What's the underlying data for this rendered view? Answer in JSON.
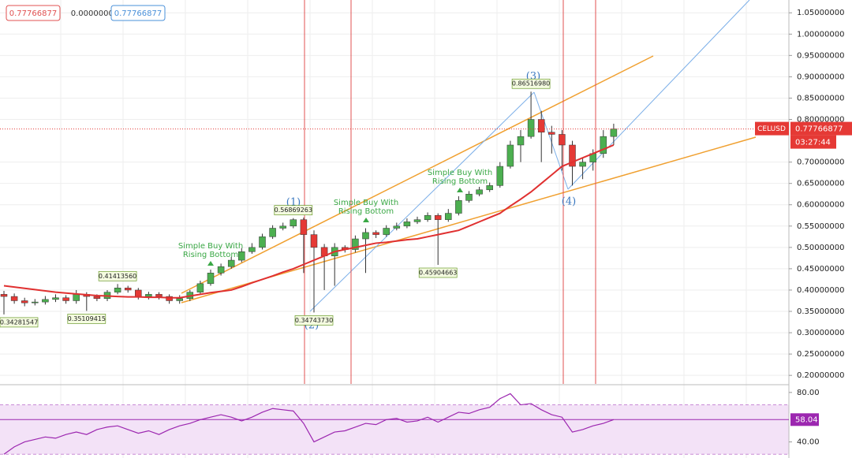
{
  "chart_data": [
    {
      "type": "candlestick",
      "categories": [
        null,
        null,
        null,
        null,
        null,
        null,
        null,
        null,
        null,
        null,
        null,
        null,
        null,
        null,
        null,
        null,
        null,
        null,
        null,
        null,
        null,
        null,
        null,
        null,
        null,
        null,
        null,
        null,
        null,
        null,
        null,
        null,
        null,
        null,
        null,
        null,
        null,
        null,
        null,
        null,
        null,
        null,
        null,
        null,
        null,
        null,
        null,
        null,
        null,
        null,
        null,
        null,
        null,
        null,
        null,
        null,
        null,
        null,
        null,
        null
      ],
      "open": [
        0.39,
        0.385,
        0.375,
        0.37,
        0.372,
        0.378,
        0.382,
        0.375,
        0.39,
        0.385,
        0.38,
        0.395,
        0.405,
        0.4,
        0.385,
        0.39,
        0.385,
        0.375,
        0.38,
        0.395,
        0.415,
        0.44,
        0.455,
        0.47,
        0.49,
        0.5,
        0.525,
        0.545,
        0.55,
        0.565,
        0.53,
        0.5,
        0.48,
        0.5,
        0.495,
        0.52,
        0.535,
        0.53,
        0.545,
        0.55,
        0.56,
        0.565,
        0.575,
        0.565,
        0.58,
        0.61,
        0.625,
        0.635,
        0.645,
        0.69,
        0.74,
        0.76,
        0.8,
        0.77,
        0.765,
        0.74,
        0.69,
        0.7,
        0.72,
        0.76
      ],
      "high": [
        0.398,
        0.392,
        0.382,
        0.379,
        0.386,
        0.39,
        0.388,
        0.4,
        0.395,
        0.39,
        0.4,
        0.4141356,
        0.41,
        0.405,
        0.396,
        0.395,
        0.39,
        0.388,
        0.4,
        0.422,
        0.448,
        0.462,
        0.478,
        0.498,
        0.51,
        0.532,
        0.552,
        0.558,
        0.56869263,
        0.57,
        0.54,
        0.508,
        0.51,
        0.505,
        0.528,
        0.545,
        0.54,
        0.552,
        0.558,
        0.568,
        0.572,
        0.582,
        0.58,
        0.59,
        0.62,
        0.632,
        0.642,
        0.652,
        0.7,
        0.75,
        0.775,
        0.8651698,
        0.82,
        0.785,
        0.775,
        0.75,
        0.71,
        0.73,
        0.775,
        0.79
      ],
      "low": [
        0.34281547,
        0.368,
        0.362,
        0.364,
        0.366,
        0.372,
        0.368,
        0.368,
        0.35109415,
        0.374,
        0.374,
        0.39,
        0.394,
        0.378,
        0.378,
        0.378,
        0.368,
        0.368,
        0.374,
        0.39,
        0.41,
        0.434,
        0.45,
        0.465,
        0.485,
        0.495,
        0.52,
        0.54,
        0.545,
        0.44,
        0.3474373,
        0.4,
        0.41,
        0.488,
        0.488,
        0.44,
        0.522,
        0.525,
        0.54,
        0.545,
        0.555,
        0.56,
        0.45904663,
        0.56,
        0.575,
        0.605,
        0.62,
        0.63,
        0.64,
        0.685,
        0.7,
        0.755,
        0.7,
        0.72,
        0.68,
        0.645,
        0.66,
        0.68,
        0.71,
        0.74
      ],
      "close": [
        0.385,
        0.375,
        0.37,
        0.372,
        0.378,
        0.382,
        0.375,
        0.39,
        0.385,
        0.38,
        0.395,
        0.405,
        0.4,
        0.385,
        0.39,
        0.385,
        0.375,
        0.38,
        0.395,
        0.415,
        0.44,
        0.455,
        0.47,
        0.49,
        0.5,
        0.525,
        0.545,
        0.55,
        0.565,
        0.53,
        0.5,
        0.48,
        0.5,
        0.495,
        0.52,
        0.535,
        0.53,
        0.545,
        0.55,
        0.56,
        0.565,
        0.575,
        0.565,
        0.58,
        0.61,
        0.625,
        0.635,
        0.645,
        0.69,
        0.74,
        0.76,
        0.8,
        0.77,
        0.765,
        0.74,
        0.69,
        0.7,
        0.72,
        0.76,
        0.77766877
      ],
      "up_color": "#4caf50",
      "down_color": "#e53935",
      "ma": {
        "color": "#e03030",
        "values": [
          0.41,
          0.407,
          0.404,
          0.401,
          0.398,
          0.395,
          0.393,
          0.391,
          0.389,
          0.387,
          0.386,
          0.385,
          0.384,
          0.384,
          0.383,
          0.383,
          0.382,
          0.382,
          0.386,
          0.39,
          0.394,
          0.397,
          0.4,
          0.408,
          0.417,
          0.425,
          0.433,
          0.442,
          0.45,
          0.46,
          0.47,
          0.48,
          0.49,
          0.495,
          0.5,
          0.505,
          0.51,
          0.512,
          0.515,
          0.518,
          0.52,
          0.525,
          0.53,
          0.535,
          0.54,
          0.55,
          0.56,
          0.57,
          0.58,
          0.597,
          0.613,
          0.63,
          0.65,
          0.67,
          0.69,
          0.7,
          0.71,
          0.72,
          0.73,
          0.74
        ]
      },
      "ylim": [
        0.18,
        1.08
      ],
      "yticks": [
        {
          "value": 0.2,
          "label": "0.20000000"
        },
        {
          "value": 0.25,
          "label": "0.25000000"
        },
        {
          "value": 0.3,
          "label": "0.30000000"
        },
        {
          "value": 0.35,
          "label": "0.35000000"
        },
        {
          "value": 0.4,
          "label": "0.40000000"
        },
        {
          "value": 0.45,
          "label": "0.45000000"
        },
        {
          "value": 0.5,
          "label": "0.50000000"
        },
        {
          "value": 0.55,
          "label": "0.55000000"
        },
        {
          "value": 0.6,
          "label": "0.60000000"
        },
        {
          "value": 0.65,
          "label": "0.65000000"
        },
        {
          "value": 0.7,
          "label": "0.70000000"
        },
        {
          "value": 0.8,
          "label": "0.80000000"
        },
        {
          "value": 0.85,
          "label": "0.85000000"
        },
        {
          "value": 0.9,
          "label": "0.90000000"
        },
        {
          "value": 0.95,
          "label": "0.95000000"
        },
        {
          "value": 1.0,
          "label": "1.00000000"
        },
        {
          "value": 1.05,
          "label": "1.05000000"
        }
      ],
      "grid": true,
      "annotations": [
        {
          "value": 0.34281547,
          "label": "0.34281547"
        },
        {
          "value": 0.35109415,
          "label": "0.35109415"
        },
        {
          "value": 0.4141356,
          "label": "0.41413560"
        },
        {
          "value": 0.56869263,
          "label": "0.56869263"
        },
        {
          "value": 0.3474373,
          "label": "0.34743730"
        },
        {
          "value": 0.45904663,
          "label": "0.45904663"
        },
        {
          "value": 0.8651698,
          "label": "0.86516980"
        }
      ],
      "wave_labels": [
        "(1)",
        "(2)",
        "(3)",
        "(4)"
      ],
      "signals": [
        [
          "Simple Buy With",
          "Rising Bottom"
        ],
        [
          "Simple Buy With",
          "Rising Bottom"
        ],
        [
          "Simple Buy With",
          "Rising Bottom"
        ]
      ],
      "legend": [
        {
          "value": 0.77766877,
          "label": "0.77766877",
          "color": "#e05050"
        },
        {
          "value": 0,
          "label": "0.00000000"
        },
        {
          "value": 0.77766877,
          "label": "0.77766877",
          "color": "#4a90d9"
        }
      ],
      "last": {
        "symbol": "CELUSD",
        "price": {
          "value": 0.77766877,
          "label": "0.77766877"
        },
        "countdown": "03:27:44",
        "color": "#e53935"
      }
    },
    {
      "type": "line",
      "categories": [
        null,
        null,
        null,
        null,
        null,
        null,
        null,
        null,
        null,
        null,
        null,
        null,
        null,
        null,
        null,
        null,
        null,
        null,
        null,
        null,
        null,
        null,
        null,
        null,
        null,
        null,
        null,
        null,
        null,
        null,
        null,
        null,
        null,
        null,
        null,
        null,
        null,
        null,
        null,
        null,
        null,
        null,
        null,
        null,
        null,
        null,
        null,
        null,
        null,
        null,
        null,
        null,
        null,
        null,
        null,
        null,
        null,
        null,
        null,
        null
      ],
      "values": [
        30,
        36,
        40,
        42,
        44,
        43,
        46,
        48,
        46,
        50,
        52,
        53,
        50,
        47,
        49,
        46,
        50,
        53,
        55,
        58,
        60,
        62,
        60,
        57,
        60,
        64,
        67,
        66,
        65,
        55,
        40,
        44,
        48,
        49,
        52,
        55,
        54,
        58,
        59,
        56,
        57,
        60,
        56,
        60,
        64,
        63,
        66,
        68,
        75,
        79,
        70,
        71,
        66,
        62,
        60,
        48,
        50,
        53,
        55,
        58.04
      ],
      "value_label": "58.04",
      "color": "#9c27b0",
      "band": [
        30,
        70
      ],
      "ylim": [
        27,
        85
      ],
      "yticks": [
        {
          "value": 40,
          "label": "40.00"
        },
        {
          "value": 80,
          "label": "80.00"
        }
      ]
    }
  ]
}
